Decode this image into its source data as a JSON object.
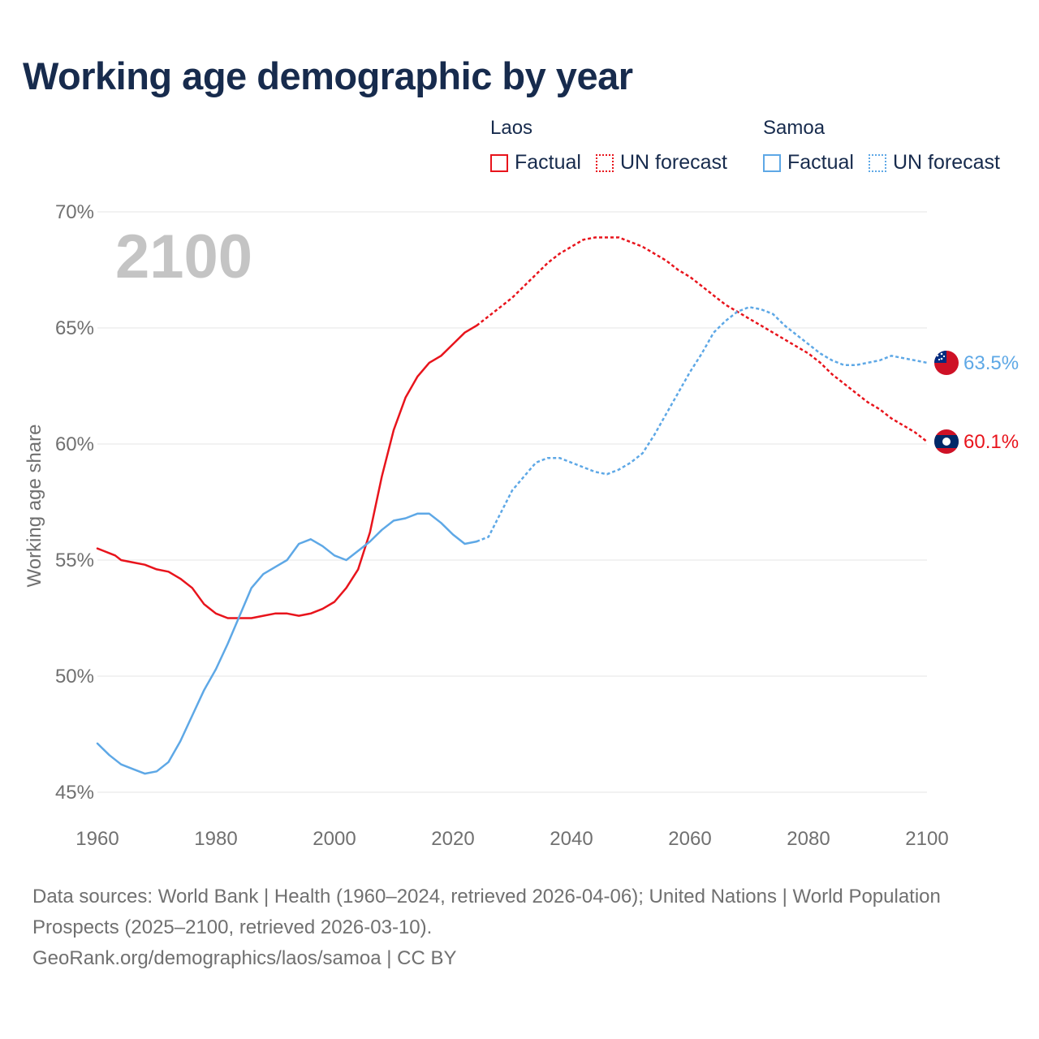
{
  "title": "Working age demographic by year",
  "legend": [
    {
      "country": "Laos",
      "factual_label": "Factual",
      "forecast_label": "UN forecast",
      "color": "#e8141c"
    },
    {
      "country": "Samoa",
      "factual_label": "Factual",
      "forecast_label": "UN forecast",
      "color": "#5ea8e6"
    }
  ],
  "year_watermark": "2100",
  "footer": {
    "sources": "Data sources: World Bank | Health (1960–2024, retrieved 2026-04-06); United Nations | World Population Prospects (2025–2100, retrieved 2026-03-10).",
    "credit": "GeoRank.org/demographics/laos/samoa | CC BY"
  },
  "chart_data": {
    "type": "line",
    "title": "Working age demographic by year",
    "xlabel": "",
    "ylabel": "Working age share",
    "xlim": [
      1960,
      2100
    ],
    "ylim": [
      45,
      70
    ],
    "x_ticks": [
      1960,
      1980,
      2000,
      2020,
      2040,
      2060,
      2080,
      2100
    ],
    "x_tick_labels": [
      "1960",
      "1980",
      "2000",
      "2020",
      "2040",
      "2060",
      "2080",
      "2100"
    ],
    "y_ticks": [
      45,
      50,
      55,
      60,
      65,
      70
    ],
    "y_tick_labels": [
      "45%",
      "50%",
      "55%",
      "60%",
      "65%",
      "70%"
    ],
    "forecast_start": 2024,
    "series": [
      {
        "name": "Laos",
        "color": "#e8141c",
        "end_label": "60.1%",
        "points": [
          [
            1960,
            55.5
          ],
          [
            1962,
            55.3
          ],
          [
            1963,
            55.2
          ],
          [
            1964,
            55.0
          ],
          [
            1966,
            54.9
          ],
          [
            1968,
            54.8
          ],
          [
            1970,
            54.6
          ],
          [
            1972,
            54.5
          ],
          [
            1974,
            54.2
          ],
          [
            1976,
            53.8
          ],
          [
            1978,
            53.1
          ],
          [
            1980,
            52.7
          ],
          [
            1982,
            52.5
          ],
          [
            1984,
            52.5
          ],
          [
            1986,
            52.5
          ],
          [
            1988,
            52.6
          ],
          [
            1990,
            52.7
          ],
          [
            1992,
            52.7
          ],
          [
            1994,
            52.6
          ],
          [
            1996,
            52.7
          ],
          [
            1998,
            52.9
          ],
          [
            2000,
            53.2
          ],
          [
            2002,
            53.8
          ],
          [
            2004,
            54.6
          ],
          [
            2006,
            56.2
          ],
          [
            2008,
            58.6
          ],
          [
            2010,
            60.6
          ],
          [
            2012,
            62.0
          ],
          [
            2014,
            62.9
          ],
          [
            2016,
            63.5
          ],
          [
            2018,
            63.8
          ],
          [
            2020,
            64.3
          ],
          [
            2022,
            64.8
          ],
          [
            2024,
            65.1
          ],
          [
            2026,
            65.5
          ],
          [
            2028,
            65.9
          ],
          [
            2030,
            66.3
          ],
          [
            2032,
            66.8
          ],
          [
            2034,
            67.3
          ],
          [
            2036,
            67.8
          ],
          [
            2038,
            68.2
          ],
          [
            2040,
            68.5
          ],
          [
            2042,
            68.8
          ],
          [
            2044,
            68.9
          ],
          [
            2046,
            68.9
          ],
          [
            2048,
            68.9
          ],
          [
            2050,
            68.7
          ],
          [
            2052,
            68.5
          ],
          [
            2054,
            68.2
          ],
          [
            2056,
            67.9
          ],
          [
            2058,
            67.5
          ],
          [
            2060,
            67.2
          ],
          [
            2062,
            66.8
          ],
          [
            2064,
            66.4
          ],
          [
            2066,
            66.0
          ],
          [
            2068,
            65.7
          ],
          [
            2070,
            65.4
          ],
          [
            2072,
            65.1
          ],
          [
            2074,
            64.8
          ],
          [
            2076,
            64.5
          ],
          [
            2078,
            64.2
          ],
          [
            2080,
            63.9
          ],
          [
            2082,
            63.5
          ],
          [
            2084,
            63.0
          ],
          [
            2086,
            62.6
          ],
          [
            2088,
            62.2
          ],
          [
            2090,
            61.8
          ],
          [
            2092,
            61.5
          ],
          [
            2094,
            61.1
          ],
          [
            2096,
            60.8
          ],
          [
            2098,
            60.5
          ],
          [
            2100,
            60.1
          ]
        ]
      },
      {
        "name": "Samoa",
        "color": "#5ea8e6",
        "end_label": "63.5%",
        "points": [
          [
            1960,
            47.1
          ],
          [
            1962,
            46.6
          ],
          [
            1964,
            46.2
          ],
          [
            1966,
            46.0
          ],
          [
            1968,
            45.8
          ],
          [
            1970,
            45.9
          ],
          [
            1972,
            46.3
          ],
          [
            1974,
            47.2
          ],
          [
            1976,
            48.3
          ],
          [
            1978,
            49.4
          ],
          [
            1980,
            50.3
          ],
          [
            1982,
            51.4
          ],
          [
            1984,
            52.6
          ],
          [
            1986,
            53.8
          ],
          [
            1988,
            54.4
          ],
          [
            1990,
            54.7
          ],
          [
            1992,
            55.0
          ],
          [
            1994,
            55.7
          ],
          [
            1996,
            55.9
          ],
          [
            1998,
            55.6
          ],
          [
            2000,
            55.2
          ],
          [
            2002,
            55.0
          ],
          [
            2004,
            55.4
          ],
          [
            2006,
            55.8
          ],
          [
            2008,
            56.3
          ],
          [
            2010,
            56.7
          ],
          [
            2012,
            56.8
          ],
          [
            2014,
            57.0
          ],
          [
            2016,
            57.0
          ],
          [
            2018,
            56.6
          ],
          [
            2020,
            56.1
          ],
          [
            2022,
            55.7
          ],
          [
            2024,
            55.8
          ],
          [
            2026,
            56.0
          ],
          [
            2028,
            57.0
          ],
          [
            2030,
            58.0
          ],
          [
            2032,
            58.6
          ],
          [
            2034,
            59.2
          ],
          [
            2036,
            59.4
          ],
          [
            2038,
            59.4
          ],
          [
            2040,
            59.2
          ],
          [
            2042,
            59.0
          ],
          [
            2044,
            58.8
          ],
          [
            2046,
            58.7
          ],
          [
            2048,
            58.9
          ],
          [
            2050,
            59.2
          ],
          [
            2052,
            59.6
          ],
          [
            2054,
            60.4
          ],
          [
            2056,
            61.3
          ],
          [
            2058,
            62.2
          ],
          [
            2060,
            63.1
          ],
          [
            2062,
            63.9
          ],
          [
            2064,
            64.8
          ],
          [
            2066,
            65.3
          ],
          [
            2068,
            65.7
          ],
          [
            2070,
            65.9
          ],
          [
            2072,
            65.8
          ],
          [
            2074,
            65.6
          ],
          [
            2076,
            65.1
          ],
          [
            2078,
            64.7
          ],
          [
            2080,
            64.3
          ],
          [
            2082,
            63.9
          ],
          [
            2084,
            63.6
          ],
          [
            2086,
            63.4
          ],
          [
            2088,
            63.4
          ],
          [
            2090,
            63.5
          ],
          [
            2092,
            63.6
          ],
          [
            2094,
            63.8
          ],
          [
            2096,
            63.7
          ],
          [
            2098,
            63.6
          ],
          [
            2100,
            63.5
          ]
        ]
      }
    ]
  }
}
